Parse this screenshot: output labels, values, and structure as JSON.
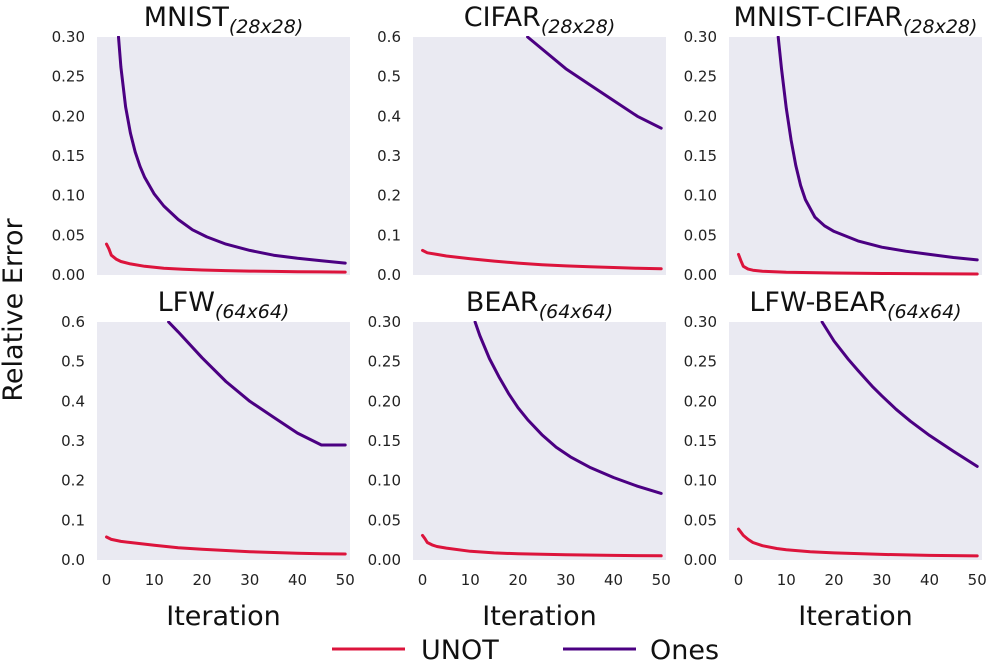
{
  "figure": {
    "ylabel": "Relative Error",
    "legend": [
      {
        "label": "UNOT",
        "color": "#dc143c"
      },
      {
        "label": "Ones",
        "color": "#4b0082"
      }
    ],
    "panel_background": "#eaeaf2"
  },
  "chart_data": [
    {
      "type": "line",
      "title": "MNIST",
      "title_subscript": "(28x28)",
      "xlabel": "",
      "xlim": [
        -2,
        51
      ],
      "ylim": [
        0,
        0.3
      ],
      "yticks": [
        "0.00",
        "0.05",
        "0.10",
        "0.15",
        "0.20",
        "0.25",
        "0.30"
      ],
      "xticks": [],
      "series": [
        {
          "name": "UNOT",
          "x": [
            0,
            0.5,
            1,
            2,
            3,
            5,
            8,
            12,
            16,
            20,
            25,
            30,
            35,
            40,
            45,
            50
          ],
          "y": [
            0.039,
            0.033,
            0.025,
            0.02,
            0.017,
            0.014,
            0.011,
            0.0085,
            0.0072,
            0.0063,
            0.0055,
            0.0049,
            0.0045,
            0.0042,
            0.0039,
            0.0037
          ]
        },
        {
          "name": "Ones",
          "x": [
            2.5,
            3,
            4,
            5,
            6,
            7,
            8,
            10,
            12,
            15,
            18,
            21,
            25,
            30,
            35,
            40,
            45,
            50
          ],
          "y": [
            0.3,
            0.262,
            0.212,
            0.179,
            0.155,
            0.137,
            0.123,
            0.102,
            0.087,
            0.07,
            0.057,
            0.048,
            0.039,
            0.031,
            0.025,
            0.021,
            0.018,
            0.015
          ]
        }
      ]
    },
    {
      "type": "line",
      "title": "CIFAR",
      "title_subscript": "(28x28)",
      "xlabel": "",
      "xlim": [
        -2,
        51
      ],
      "ylim": [
        0,
        0.6
      ],
      "yticks": [
        "0.0",
        "0.1",
        "0.2",
        "0.3",
        "0.4",
        "0.5",
        "0.6"
      ],
      "xticks": [],
      "series": [
        {
          "name": "UNOT",
          "x": [
            0,
            1,
            3,
            5,
            10,
            15,
            20,
            25,
            30,
            35,
            40,
            45,
            50
          ],
          "y": [
            0.062,
            0.056,
            0.052,
            0.048,
            0.041,
            0.035,
            0.03,
            0.026,
            0.023,
            0.021,
            0.019,
            0.017,
            0.016
          ]
        },
        {
          "name": "Ones",
          "x": [
            22,
            25,
            30,
            35,
            40,
            45,
            50
          ],
          "y": [
            0.6,
            0.57,
            0.52,
            0.48,
            0.44,
            0.4,
            0.37
          ]
        }
      ]
    },
    {
      "type": "line",
      "title": "MNIST-CIFAR",
      "title_subscript": "(28x28)",
      "xlabel": "",
      "xlim": [
        -2,
        51
      ],
      "ylim": [
        0,
        0.3
      ],
      "yticks": [
        "0.00",
        "0.05",
        "0.10",
        "0.15",
        "0.20",
        "0.25",
        "0.30"
      ],
      "xticks": [],
      "series": [
        {
          "name": "UNOT",
          "x": [
            0,
            0.5,
            1,
            2,
            3,
            5,
            10,
            20,
            30,
            40,
            50
          ],
          "y": [
            0.026,
            0.018,
            0.011,
            0.0075,
            0.006,
            0.0048,
            0.0035,
            0.0025,
            0.0019,
            0.0015,
            0.0013
          ]
        },
        {
          "name": "Ones",
          "x": [
            8.3,
            9,
            10,
            11,
            12,
            13,
            14,
            16,
            18,
            20,
            25,
            30,
            35,
            40,
            45,
            50
          ],
          "y": [
            0.3,
            0.26,
            0.21,
            0.17,
            0.138,
            0.113,
            0.095,
            0.073,
            0.062,
            0.055,
            0.043,
            0.035,
            0.03,
            0.026,
            0.022,
            0.019
          ]
        }
      ]
    },
    {
      "type": "line",
      "title": "LFW",
      "title_subscript": "(64x64)",
      "xlabel": "Iteration",
      "xlim": [
        -2,
        51
      ],
      "ylim": [
        0,
        0.6
      ],
      "yticks": [
        "0.0",
        "0.1",
        "0.2",
        "0.3",
        "0.4",
        "0.5",
        "0.6"
      ],
      "xticks": [
        "0",
        "10",
        "20",
        "30",
        "40",
        "50"
      ],
      "series": [
        {
          "name": "UNOT",
          "x": [
            0,
            1,
            3,
            5,
            10,
            15,
            20,
            25,
            30,
            35,
            40,
            45,
            50
          ],
          "y": [
            0.058,
            0.052,
            0.047,
            0.044,
            0.037,
            0.031,
            0.027,
            0.024,
            0.021,
            0.019,
            0.017,
            0.016,
            0.015
          ]
        },
        {
          "name": "Ones",
          "x": [
            13,
            15,
            20,
            25,
            30,
            35,
            40,
            45,
            50
          ],
          "y": [
            0.6,
            0.575,
            0.51,
            0.45,
            0.4,
            0.36,
            0.32,
            0.29,
            0.29
          ]
        }
      ]
    },
    {
      "type": "line",
      "title": "BEAR",
      "title_subscript": "(64x64)",
      "xlabel": "Iteration",
      "xlim": [
        -2,
        51
      ],
      "ylim": [
        0,
        0.3
      ],
      "yticks": [
        "0.00",
        "0.05",
        "0.10",
        "0.15",
        "0.20",
        "0.25",
        "0.30"
      ],
      "xticks": [
        "0",
        "10",
        "20",
        "30",
        "40",
        "50"
      ],
      "series": [
        {
          "name": "UNOT",
          "x": [
            0,
            0.5,
            1,
            2,
            3,
            5,
            10,
            15,
            20,
            30,
            40,
            50
          ],
          "y": [
            0.031,
            0.027,
            0.022,
            0.019,
            0.017,
            0.015,
            0.011,
            0.009,
            0.0078,
            0.0065,
            0.0058,
            0.0053
          ]
        },
        {
          "name": "Ones",
          "x": [
            11,
            12,
            14,
            16,
            18,
            20,
            22,
            25,
            28,
            31,
            35,
            40,
            45,
            50
          ],
          "y": [
            0.3,
            0.283,
            0.254,
            0.231,
            0.21,
            0.192,
            0.177,
            0.158,
            0.142,
            0.13,
            0.117,
            0.104,
            0.093,
            0.084
          ]
        }
      ]
    },
    {
      "type": "line",
      "title": "LFW-BEAR",
      "title_subscript": "(64x64)",
      "xlabel": "Iteration",
      "xlim": [
        -2,
        51
      ],
      "ylim": [
        0,
        0.3
      ],
      "yticks": [
        "0.00",
        "0.05",
        "0.10",
        "0.15",
        "0.20",
        "0.25",
        "0.30"
      ],
      "xticks": [
        "0",
        "10",
        "20",
        "30",
        "40",
        "50"
      ],
      "series": [
        {
          "name": "UNOT",
          "x": [
            0,
            0.5,
            1,
            2,
            3,
            5,
            8,
            10,
            15,
            20,
            30,
            40,
            50
          ],
          "y": [
            0.039,
            0.035,
            0.031,
            0.026,
            0.022,
            0.018,
            0.0145,
            0.013,
            0.0105,
            0.009,
            0.007,
            0.0058,
            0.0052
          ]
        },
        {
          "name": "Ones",
          "x": [
            17.5,
            20,
            23,
            25,
            28,
            30,
            33,
            36,
            40,
            45,
            50
          ],
          "y": [
            0.3,
            0.276,
            0.253,
            0.239,
            0.219,
            0.207,
            0.19,
            0.175,
            0.157,
            0.137,
            0.118
          ]
        }
      ]
    }
  ]
}
